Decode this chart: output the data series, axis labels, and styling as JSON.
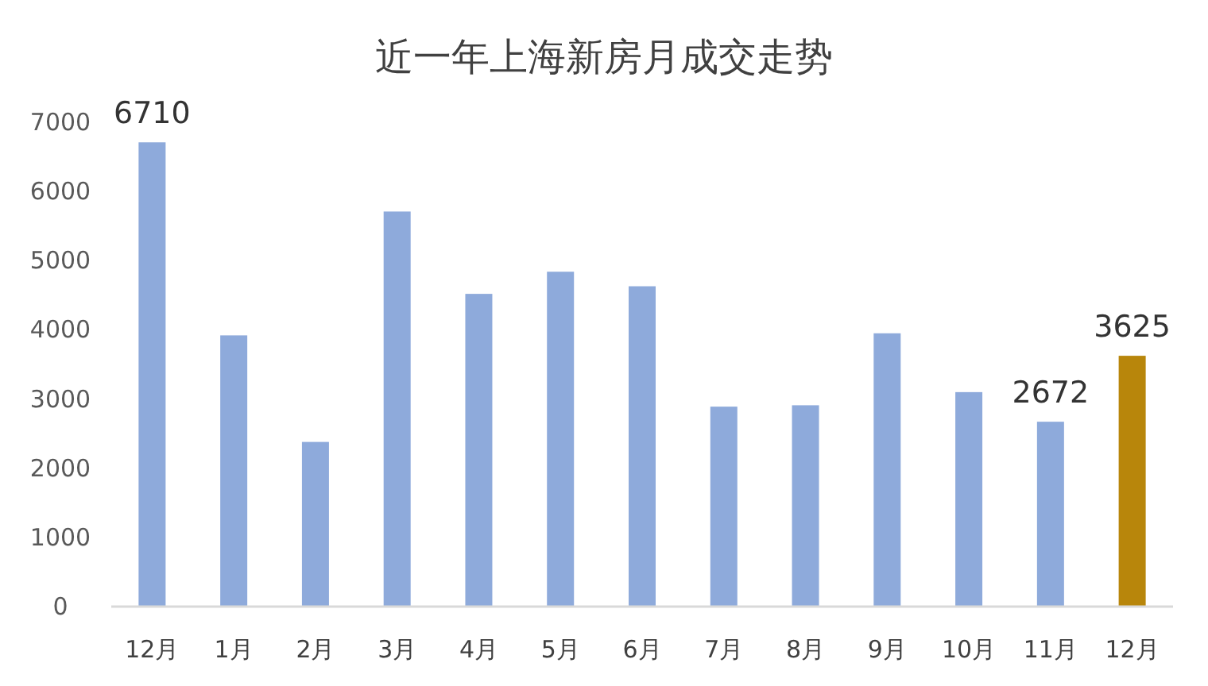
{
  "chart_data": {
    "type": "bar",
    "title": "近一年上海新房月成交走势",
    "categories": [
      "12月",
      "1月",
      "2月",
      "3月",
      "4月",
      "5月",
      "6月",
      "7月",
      "8月",
      "9月",
      "10月",
      "11月",
      "12月"
    ],
    "values": [
      6710,
      3920,
      2380,
      5710,
      4520,
      4840,
      4630,
      2890,
      2910,
      3950,
      3100,
      2672,
      3625
    ],
    "colors": [
      "#8eaadb",
      "#8eaadb",
      "#8eaadb",
      "#8eaadb",
      "#8eaadb",
      "#8eaadb",
      "#8eaadb",
      "#8eaadb",
      "#8eaadb",
      "#8eaadb",
      "#8eaadb",
      "#8eaadb",
      "#b8860b"
    ],
    "value_labels": [
      "6710",
      null,
      null,
      null,
      null,
      null,
      null,
      null,
      null,
      null,
      null,
      "2672",
      "3625"
    ],
    "ylim": [
      0,
      7000
    ],
    "yticks": [
      0,
      1000,
      2000,
      3000,
      4000,
      5000,
      6000,
      7000
    ]
  }
}
